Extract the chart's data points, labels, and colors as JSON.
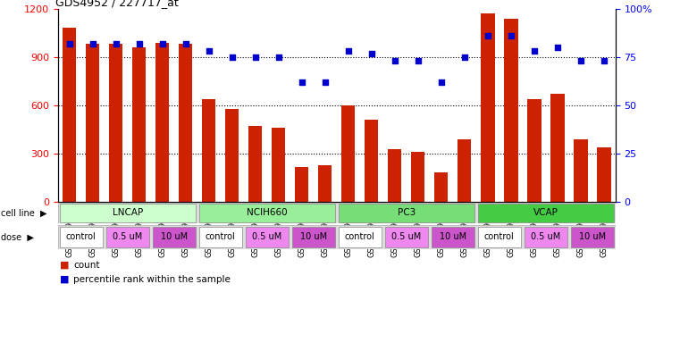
{
  "title": "GDS4952 / 227717_at",
  "samples": [
    "GSM1359772",
    "GSM1359773",
    "GSM1359774",
    "GSM1359775",
    "GSM1359776",
    "GSM1359777",
    "GSM1359760",
    "GSM1359761",
    "GSM1359762",
    "GSM1359763",
    "GSM1359764",
    "GSM1359765",
    "GSM1359778",
    "GSM1359779",
    "GSM1359780",
    "GSM1359781",
    "GSM1359782",
    "GSM1359783",
    "GSM1359766",
    "GSM1359767",
    "GSM1359768",
    "GSM1359769",
    "GSM1359770",
    "GSM1359771"
  ],
  "counts": [
    1080,
    980,
    980,
    960,
    990,
    980,
    640,
    580,
    470,
    460,
    215,
    230,
    600,
    510,
    330,
    310,
    185,
    390,
    1170,
    1140,
    640,
    670,
    390,
    340
  ],
  "percentile_ranks": [
    82,
    82,
    82,
    82,
    82,
    82,
    78,
    75,
    75,
    75,
    62,
    62,
    78,
    77,
    73,
    73,
    62,
    75,
    86,
    86,
    78,
    80,
    73,
    73
  ],
  "cell_lines": [
    {
      "name": "LNCAP",
      "start": 0,
      "end": 6,
      "color": "#ccffcc"
    },
    {
      "name": "NCIH660",
      "start": 6,
      "end": 12,
      "color": "#99ee99"
    },
    {
      "name": "PC3",
      "start": 12,
      "end": 18,
      "color": "#77dd77"
    },
    {
      "name": "VCAP",
      "start": 18,
      "end": 24,
      "color": "#44cc44"
    }
  ],
  "doses": [
    {
      "label": "control",
      "start": 0,
      "end": 2
    },
    {
      "label": "0.5 uM",
      "start": 2,
      "end": 4
    },
    {
      "label": "10 uM",
      "start": 4,
      "end": 6
    },
    {
      "label": "control",
      "start": 6,
      "end": 8
    },
    {
      "label": "0.5 uM",
      "start": 8,
      "end": 10
    },
    {
      "label": "10 uM",
      "start": 10,
      "end": 12
    },
    {
      "label": "control",
      "start": 12,
      "end": 14
    },
    {
      "label": "0.5 uM",
      "start": 14,
      "end": 16
    },
    {
      "label": "10 uM",
      "start": 16,
      "end": 18
    },
    {
      "label": "control",
      "start": 18,
      "end": 20
    },
    {
      "label": "0.5 uM",
      "start": 20,
      "end": 22
    },
    {
      "label": "10 uM",
      "start": 22,
      "end": 24
    }
  ],
  "ylim_left": [
    0,
    1200
  ],
  "ylim_right": [
    0,
    100
  ],
  "yticks_left": [
    0,
    300,
    600,
    900,
    1200
  ],
  "yticks_right": [
    0,
    25,
    50,
    75,
    100
  ],
  "bar_color": "#cc2200",
  "dot_color": "#0000cc",
  "background_color": "#ffffff",
  "plot_bg_color": "#ffffff",
  "dose_colors": {
    "control": "#ffffff",
    "0.5 uM": "#ee88ee",
    "10 uM": "#cc55cc"
  },
  "grid_color": "#000000",
  "grid_yticks": [
    300,
    600,
    900
  ]
}
